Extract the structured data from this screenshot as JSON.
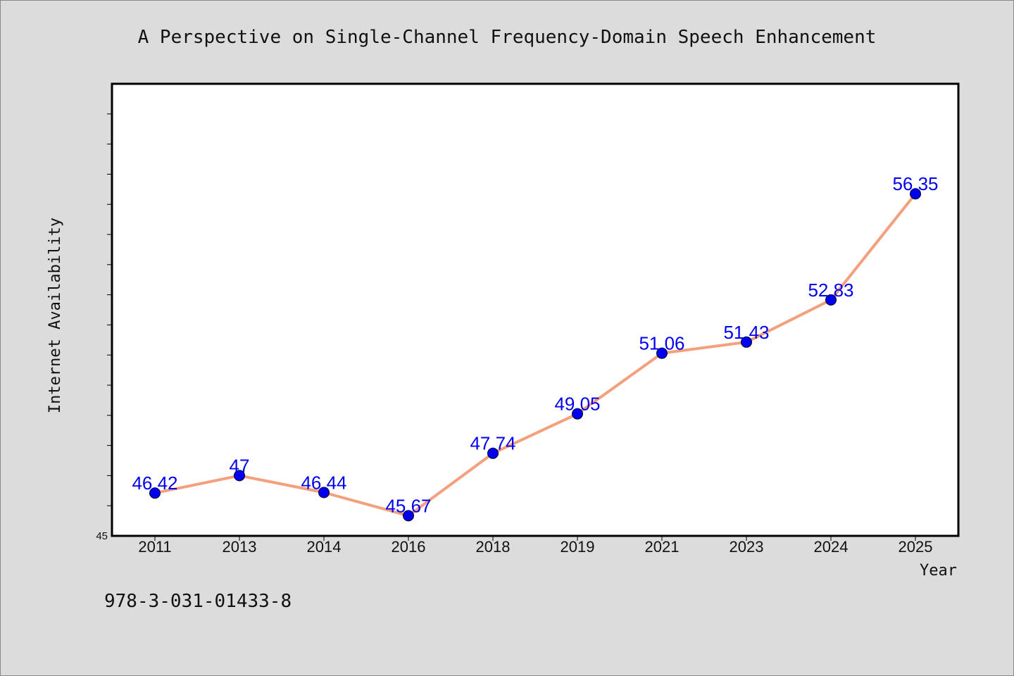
{
  "chart_data": {
    "type": "line",
    "title": "A Perspective on Single-Channel Frequency-Domain Speech Enhancement",
    "xlabel": "Year",
    "ylabel": "Internet Availability",
    "categories": [
      "2011",
      "2013",
      "2014",
      "2016",
      "2018",
      "2019",
      "2021",
      "2023",
      "2024",
      "2025"
    ],
    "series": [
      {
        "values": [
          46.42,
          47,
          46.44,
          45.67,
          47.74,
          49.05,
          51.06,
          51.43,
          52.83,
          56.35
        ],
        "labels": [
          "46.42",
          "47",
          "46.44",
          "45.67",
          "47.74",
          "49.05",
          "51.06",
          "51.43",
          "52.83",
          "56.35"
        ]
      }
    ],
    "ylim": [
      45,
      60
    ],
    "y_tick_labels": [
      "45"
    ],
    "grid": false,
    "colors": {
      "line": "#f4a07c",
      "marker": "#0000ee",
      "label": "#0000ee",
      "plot_bg": "#ffffff",
      "page_bg": "#dcdcdc"
    }
  },
  "footnote": "978-3-031-01433-8"
}
